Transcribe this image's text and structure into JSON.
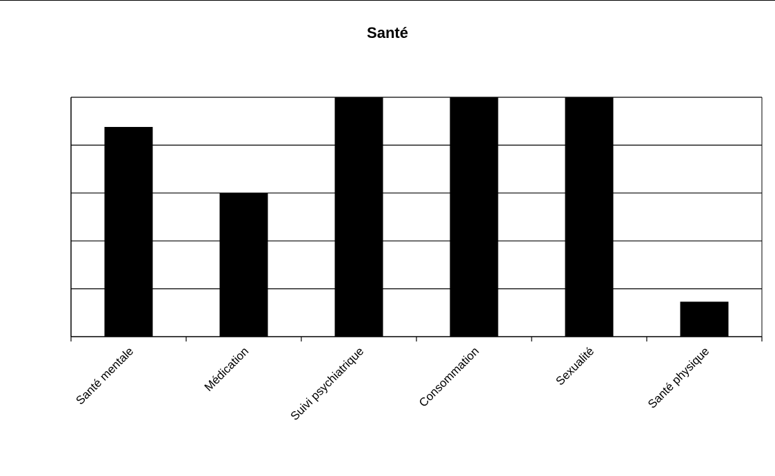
{
  "chart_data": {
    "type": "bar",
    "title": "Santé",
    "categories": [
      "Santé mentale",
      "Médication",
      "Suivi psychiatrique",
      "Consommation",
      "Sexualité",
      "Santé physique"
    ],
    "series": [
      {
        "values": [
          4.38,
          3.0,
          5.0,
          5.0,
          5.0,
          0.73
        ]
      }
    ],
    "ylim": [
      0,
      5
    ],
    "y_ticks_shown": false,
    "grid": true,
    "legend": "none",
    "bar_color": "#000000"
  }
}
